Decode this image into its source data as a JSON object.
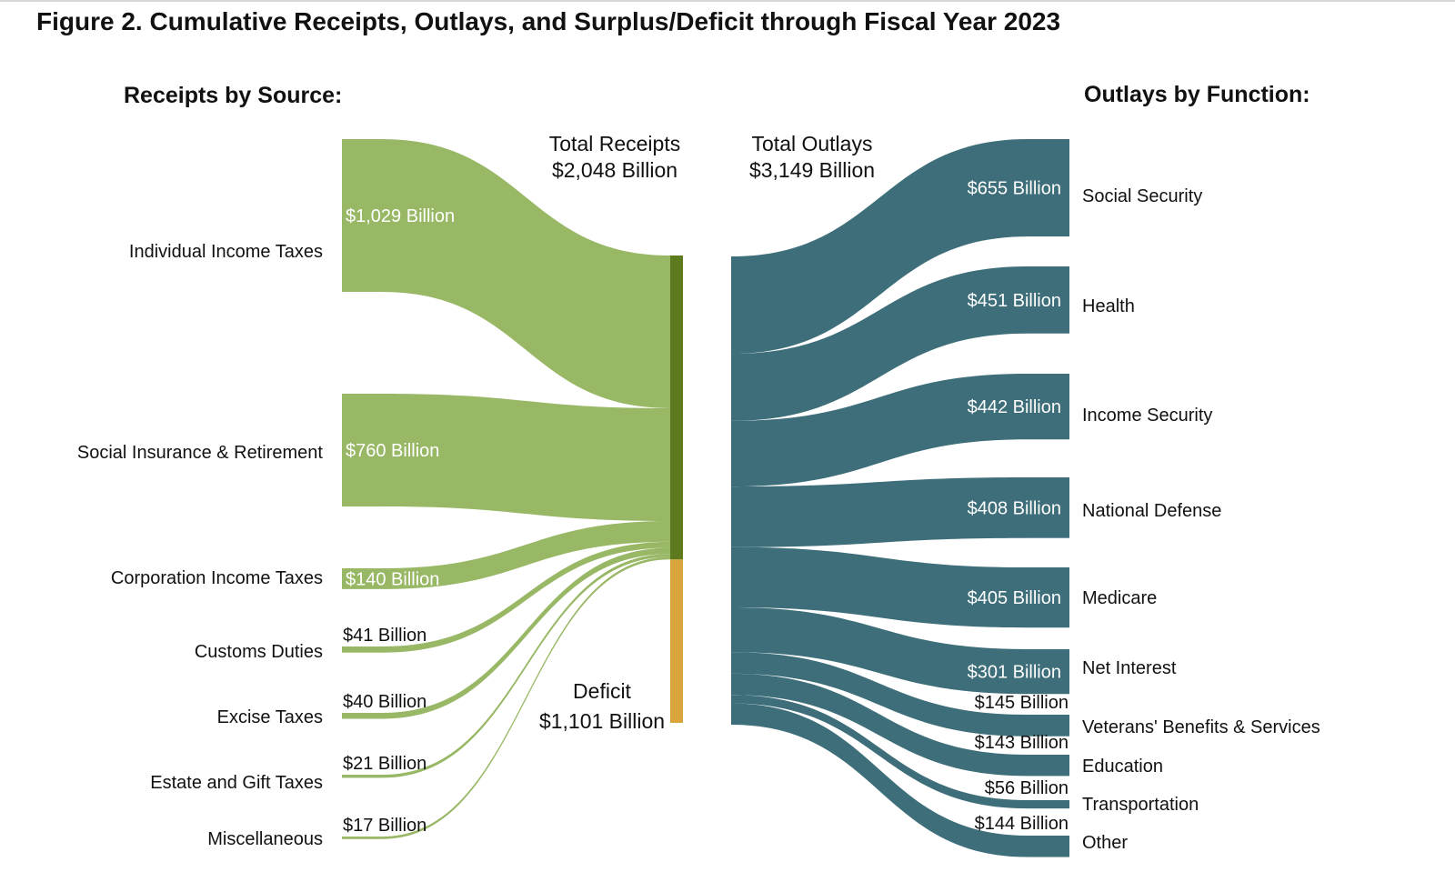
{
  "title": "Figure 2. Cumulative Receipts, Outlays, and Surplus/Deficit through Fiscal Year 2023",
  "colors": {
    "receipts_flow": "#98b866",
    "receipts_bar": "#5e7a1e",
    "deficit_bar": "#d9a43a",
    "outlays_flow": "#3d6e7a"
  },
  "chart_data": {
    "type": "sankey",
    "units": "Billion",
    "receipts": {
      "header": "Receipts by Source:",
      "total_label": [
        "Total Receipts",
        "$2,048 Billion"
      ],
      "total": 2048,
      "sources": [
        {
          "name": "Individual Income Taxes",
          "value": 1029,
          "value_label": "$1,029 Billion"
        },
        {
          "name": "Social Insurance & Retirement",
          "value": 760,
          "value_label": "$760 Billion"
        },
        {
          "name": "Corporation Income Taxes",
          "value": 140,
          "value_label": "$140 Billion"
        },
        {
          "name": "Customs Duties",
          "value": 41,
          "value_label": "$41 Billion"
        },
        {
          "name": "Excise Taxes",
          "value": 40,
          "value_label": "$40 Billion"
        },
        {
          "name": "Estate and Gift Taxes",
          "value": 21,
          "value_label": "$21 Billion"
        },
        {
          "name": "Miscellaneous",
          "value": 17,
          "value_label": "$17 Billion"
        }
      ]
    },
    "deficit": {
      "label": [
        "Deficit",
        "$1,101 Billion"
      ],
      "value": 1101
    },
    "outlays": {
      "header": "Outlays by Function:",
      "total_label": [
        "Total Outlays",
        "$3,149 Billion"
      ],
      "total": 3149,
      "functions": [
        {
          "name": "Social Security",
          "value": 655,
          "value_label": "$655 Billion"
        },
        {
          "name": "Health",
          "value": 451,
          "value_label": "$451 Billion"
        },
        {
          "name": "Income Security",
          "value": 442,
          "value_label": "$442 Billion"
        },
        {
          "name": "National Defense",
          "value": 408,
          "value_label": "$408 Billion"
        },
        {
          "name": "Medicare",
          "value": 405,
          "value_label": "$405 Billion"
        },
        {
          "name": "Net Interest",
          "value": 301,
          "value_label": "$301 Billion"
        },
        {
          "name": "Veterans' Benefits & Services",
          "value": 145,
          "value_label": "$145 Billion"
        },
        {
          "name": "Education",
          "value": 143,
          "value_label": "$143 Billion"
        },
        {
          "name": "Transportation",
          "value": 56,
          "value_label": "$56 Billion"
        },
        {
          "name": "Other",
          "value": 144,
          "value_label": "$144 Billion"
        }
      ]
    }
  }
}
